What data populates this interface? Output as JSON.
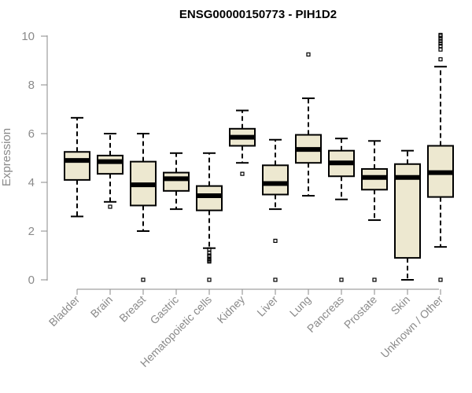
{
  "chart_data": {
    "type": "boxplot",
    "title": "ENSG00000150773 - PIH1D2",
    "xlabel": "",
    "ylabel": "Expression",
    "ylim": [
      0,
      10
    ],
    "yticks": [
      0,
      2,
      4,
      6,
      8,
      10
    ],
    "box_color": "#ede8d0",
    "categories": [
      "Bladder",
      "Brain",
      "Breast",
      "Gastric",
      "Hematopoietic cells",
      "Kidney",
      "Liver",
      "Lung",
      "Pancreas",
      "Prostate",
      "Skin",
      "Unknown / Other"
    ],
    "boxes": [
      {
        "name": "Bladder",
        "whisker_low": 2.6,
        "q1": 4.1,
        "median": 4.9,
        "q3": 5.25,
        "whisker_high": 6.65,
        "outliers": []
      },
      {
        "name": "Brain",
        "whisker_low": 3.2,
        "q1": 4.35,
        "median": 4.85,
        "q3": 5.1,
        "whisker_high": 6.0,
        "outliers": [
          3.0
        ]
      },
      {
        "name": "Breast",
        "whisker_low": 2.0,
        "q1": 3.05,
        "median": 3.9,
        "q3": 4.85,
        "whisker_high": 6.0,
        "outliers": [
          0.0
        ]
      },
      {
        "name": "Gastric",
        "whisker_low": 2.9,
        "q1": 3.65,
        "median": 4.15,
        "q3": 4.4,
        "whisker_high": 5.2,
        "outliers": []
      },
      {
        "name": "Hematopoietic cells",
        "whisker_low": 1.3,
        "q1": 2.85,
        "median": 3.45,
        "q3": 3.85,
        "whisker_high": 5.2,
        "outliers": [
          1.25,
          1.1,
          1.0,
          0.95,
          0.85,
          0.8,
          0.75,
          0.0
        ]
      },
      {
        "name": "Kidney",
        "whisker_low": 4.8,
        "q1": 5.5,
        "median": 5.85,
        "q3": 6.2,
        "whisker_high": 6.95,
        "outliers": [
          4.35
        ]
      },
      {
        "name": "Liver",
        "whisker_low": 2.9,
        "q1": 3.5,
        "median": 3.95,
        "q3": 4.7,
        "whisker_high": 5.75,
        "outliers": [
          1.6,
          0.0
        ]
      },
      {
        "name": "Lung",
        "whisker_low": 3.45,
        "q1": 4.8,
        "median": 5.35,
        "q3": 5.95,
        "whisker_high": 7.45,
        "outliers": [
          9.25
        ]
      },
      {
        "name": "Pancreas",
        "whisker_low": 3.3,
        "q1": 4.25,
        "median": 4.8,
        "q3": 5.3,
        "whisker_high": 5.8,
        "outliers": [
          0.0
        ]
      },
      {
        "name": "Prostate",
        "whisker_low": 2.45,
        "q1": 3.7,
        "median": 4.2,
        "q3": 4.55,
        "whisker_high": 5.7,
        "outliers": [
          0.0
        ]
      },
      {
        "name": "Skin",
        "whisker_low": 0.0,
        "q1": 0.9,
        "median": 4.2,
        "q3": 4.75,
        "whisker_high": 5.3,
        "outliers": []
      },
      {
        "name": "Unknown / Other",
        "whisker_low": 1.35,
        "q1": 3.4,
        "median": 4.4,
        "q3": 5.5,
        "whisker_high": 8.75,
        "outliers": [
          0.0,
          9.05,
          9.45,
          9.6,
          9.7,
          9.8,
          9.9,
          10.0,
          10.05
        ]
      }
    ]
  }
}
